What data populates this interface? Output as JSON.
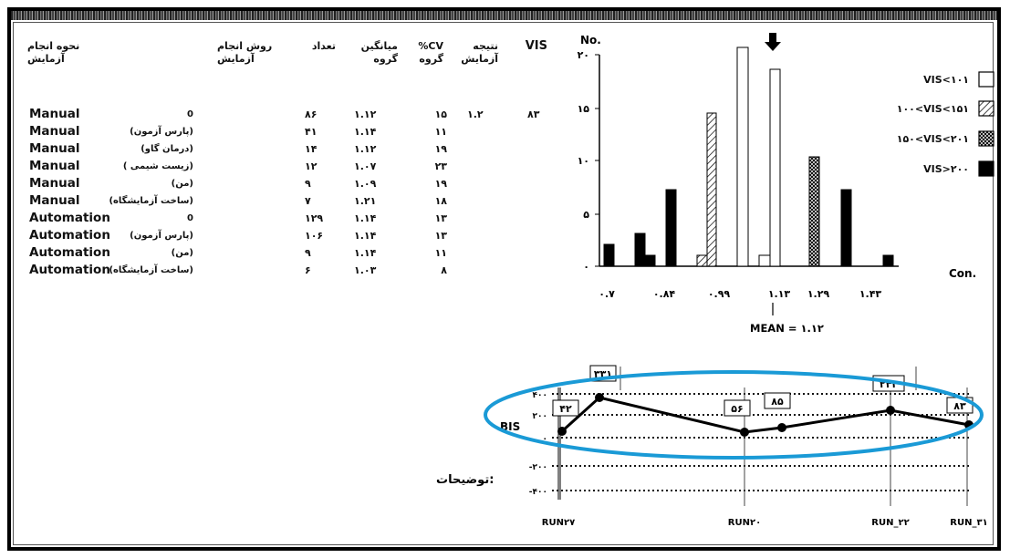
{
  "table": {
    "headers": {
      "method_a": "نحوه انجام",
      "method_b": "آزمایش",
      "tech_a": "روش انجام",
      "tech_b": "آزمایش",
      "count": "تعداد",
      "mean_a": "میانگین",
      "mean_b": "گروه",
      "cv_a": "%CV",
      "cv_b": "گروه",
      "result_a": "نتیجه",
      "result_b": "آزمایش",
      "vis": "VIS"
    },
    "rows": [
      {
        "method": "Manual",
        "label": "0",
        "count": "۸۶",
        "mean": "۱.۱۲",
        "cv": "۱۵"
      },
      {
        "method": "Manual",
        "label": "(پارس آزمون)",
        "count": "۴۱",
        "mean": "۱.۱۴",
        "cv": "۱۱"
      },
      {
        "method": "Manual",
        "label": "(درمان گاو)",
        "count": "۱۴",
        "mean": "۱.۱۲",
        "cv": "۱۹"
      },
      {
        "method": "Manual",
        "label": "( زیست شیمی)",
        "count": "۱۲",
        "mean": "۱.۰۷",
        "cv": "۲۳"
      },
      {
        "method": "Manual",
        "label": "(من)",
        "count": "۹",
        "mean": "۱.۰۹",
        "cv": "۱۹"
      },
      {
        "method": "Manual",
        "label": "(ساخت آزمایشگاه)",
        "count": "۷",
        "mean": "۱.۲۱",
        "cv": "۱۸"
      },
      {
        "method": "Automation",
        "label": "0",
        "count": "۱۲۹",
        "mean": "۱.۱۴",
        "cv": "۱۳"
      },
      {
        "method": "Automation",
        "label": "(پارس آزمون)",
        "count": "۱۰۶",
        "mean": "۱.۱۴",
        "cv": "۱۳"
      },
      {
        "method": "Automation",
        "label": "(من)",
        "count": "۹",
        "mean": "۱.۱۴",
        "cv": "۱۱"
      },
      {
        "method": "Automation",
        "label": "(ساخت آزمایشگاه)",
        "count": "۶",
        "mean": "۱.۰۳",
        "cv": "۸"
      }
    ],
    "result_value": "۱.۲",
    "vis_value": "۸۳"
  },
  "histogram": {
    "y_title": "No.",
    "y_ticks": [
      "۲۰",
      "۱۵",
      "۱۰",
      "۵",
      "۰"
    ],
    "x_ticks": [
      "۰.۷",
      "۰.۸۴",
      "۰.۹۹",
      "۱.۱۳",
      "۱.۲۹",
      "۱.۴۳"
    ],
    "x_unit": "Con.",
    "mean_label": "MEAN = ۱.۱۲",
    "legend": [
      {
        "label": "VIS<۱۰۱",
        "fill": "white"
      },
      {
        "label": "۱۰۰<VIS<۱۵۱",
        "fill": "hatch"
      },
      {
        "label": "۱۵۰<VIS<۲۰۱",
        "fill": "cross"
      },
      {
        "label": "VIS>۲۰۰",
        "fill": "black"
      }
    ]
  },
  "run_chart": {
    "y_title": "BIS",
    "y_ticks": [
      "۴۰۰",
      "۲۰۰",
      "۰",
      "-۲۰۰",
      "-۴۰۰"
    ],
    "x_labels": [
      "RUN۲۷",
      "RUN۲۰",
      "RUN_۲۲",
      "RUN_۳۱"
    ],
    "point_labels": [
      "۴۲",
      "۳۳۱",
      "۵۶",
      "۸۵",
      "۲۴۲",
      "۸۳"
    ],
    "comment_label": "توضیحات:"
  },
  "colors": {
    "annotation_ellipse": "#1a9ad6"
  }
}
